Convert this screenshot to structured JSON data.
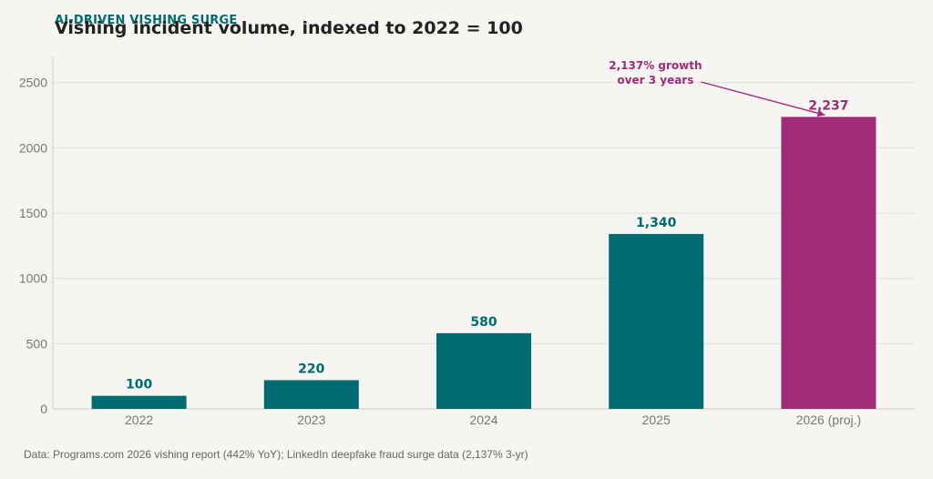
{
  "header": {
    "eyebrow": "AI-DRIVEN VISHING SURGE",
    "title": "Vishing incident volume, indexed to 2022 = 100"
  },
  "footer": {
    "source": "Data: Programs.com 2026 vishing report (442% YoY); LinkedIn deepfake fraud surge data (2,137% 3-yr)"
  },
  "chart_data": {
    "type": "bar",
    "title": "Vishing incident volume, indexed to 2022 = 100",
    "categories": [
      "2022",
      "2023",
      "2024",
      "2025",
      "2026 (proj.)"
    ],
    "values": [
      100,
      220,
      580,
      1340,
      2237
    ],
    "data_labels": [
      "100",
      "220",
      "580",
      "1,340",
      "2,237"
    ],
    "yticks": [
      0,
      500,
      1000,
      1500,
      2000,
      2500
    ],
    "ylim": [
      0,
      2700
    ],
    "xlabel": "",
    "ylabel": "",
    "grid": "horizontal",
    "colors": {
      "default": "#006b70",
      "projected": "#a02b78",
      "grid": "#e3e0da",
      "axis": "#cfccc6",
      "tick_text": "#777777"
    },
    "highlight_index": 4,
    "annotation": {
      "lines": [
        "2,137% growth",
        "over 3 years"
      ],
      "target_index": 4
    }
  }
}
